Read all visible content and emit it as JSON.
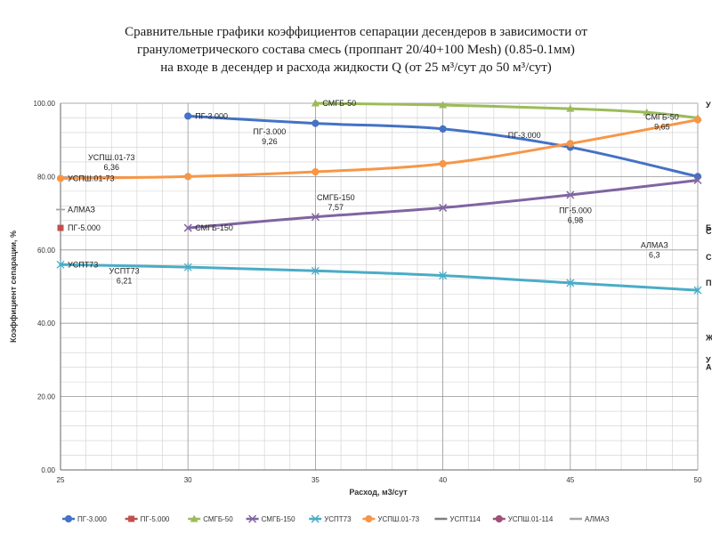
{
  "title_lines": [
    "Сравнительные графики коэффициентов сепарации десендеров  в зависимости от",
    "гранулометрического состава  смесь (проппант 20/40+100 Mesh) (0.85-0.1мм)",
    "на входе в десендер и расхода жидкости Q (от 25 м³/сут до 50 м³/сут)"
  ],
  "chart_data": {
    "type": "line",
    "xlabel": "Расход, м3/сут",
    "ylabel": "Коэффициент сепарации, %",
    "xlim": [
      25,
      50
    ],
    "ylim": [
      0,
      100
    ],
    "x_ticks": [
      "25",
      "30",
      "35",
      "40",
      "45",
      "50"
    ],
    "y_ticks": [
      "0.00",
      "20.00",
      "40.00",
      "60.00",
      "80.00",
      "100.00"
    ],
    "grid": true,
    "legend_position": "bottom",
    "series": [
      {
        "name": "ПГ-3.000",
        "color": "#4472C4",
        "marker": "circle",
        "points": [
          [
            30,
            96.5
          ],
          [
            35,
            94.5
          ],
          [
            40,
            93
          ],
          [
            45,
            88
          ],
          [
            50,
            80
          ]
        ],
        "label": "ПГ-3.000"
      },
      {
        "name": "ПГ-5.000",
        "color": "#C0504D",
        "marker": "square",
        "points": [
          [
            25,
            66
          ]
        ],
        "label": "ПГ-5.000"
      },
      {
        "name": "СМГБ-50",
        "color": "#9BBB59",
        "marker": "triangle",
        "points": [
          [
            35,
            100
          ],
          [
            40,
            99.5
          ],
          [
            45,
            98.5
          ],
          [
            48,
            97.5
          ],
          [
            50,
            96
          ]
        ],
        "label": "СМГБ-50"
      },
      {
        "name": "СМГБ-150",
        "color": "#8064A2",
        "marker": "x",
        "points": [
          [
            30,
            66
          ],
          [
            35,
            69
          ],
          [
            40,
            71.5
          ],
          [
            45,
            75
          ],
          [
            50,
            79
          ]
        ],
        "label": "СМГБ-150"
      },
      {
        "name": "УСПТ73",
        "color": "#4BACC6",
        "marker": "star",
        "points": [
          [
            25,
            56
          ],
          [
            30,
            55.3
          ],
          [
            35,
            54.3
          ],
          [
            40,
            53
          ],
          [
            45,
            51
          ],
          [
            50,
            49
          ]
        ],
        "label": "УСПТ73"
      },
      {
        "name": "УСПШ.01-73",
        "color": "#F79646",
        "marker": "circle",
        "points": [
          [
            25,
            79.5
          ],
          [
            30,
            80
          ],
          [
            35,
            81.3
          ],
          [
            40,
            83.5
          ],
          [
            45,
            89
          ],
          [
            50,
            95.5
          ]
        ],
        "label": "УСПШ.01-73"
      },
      {
        "name": "УСПТ114",
        "color": "#7F7F7F",
        "marker": "dash",
        "points": [],
        "label": ""
      },
      {
        "name": "УСПШ.01-114",
        "color": "#A05078",
        "marker": "circle",
        "points": [],
        "label": ""
      },
      {
        "name": "АЛМАЗ",
        "color": "#A6A6A6",
        "marker": "dash",
        "points": [
          [
            25,
            71
          ]
        ],
        "label": "АЛМАЗ"
      }
    ],
    "annotations": [
      {
        "lines": [
          "ПГ-3.000",
          "9,26"
        ],
        "x": 33.2,
        "y": 91.5
      },
      {
        "lines": [
          "УСПШ.01-73",
          "6,36"
        ],
        "x": 27,
        "y": 84.5
      },
      {
        "lines": [
          "СМГБ-150",
          "7,57"
        ],
        "x": 35.8,
        "y": 73.5
      },
      {
        "lines": [
          "ПГ-5.000",
          "6,98"
        ],
        "x": 45.2,
        "y": 70
      },
      {
        "lines": [
          "УСПТ73",
          "6,21"
        ],
        "x": 27.5,
        "y": 53.5
      },
      {
        "lines": [
          "СМГБ-50",
          "9,65"
        ],
        "x": 48.6,
        "y": 95.5
      },
      {
        "lines": [
          "ПГ-3.000"
        ],
        "x": 43.2,
        "y": 90.5
      },
      {
        "lines": [
          "АЛМАЗ",
          "6,3"
        ],
        "x": 48.3,
        "y": 60.5
      }
    ],
    "right_edge_labels": [
      "У",
      "Б",
      "С",
      "С",
      "П",
      "Ж",
      "У",
      "А"
    ]
  }
}
